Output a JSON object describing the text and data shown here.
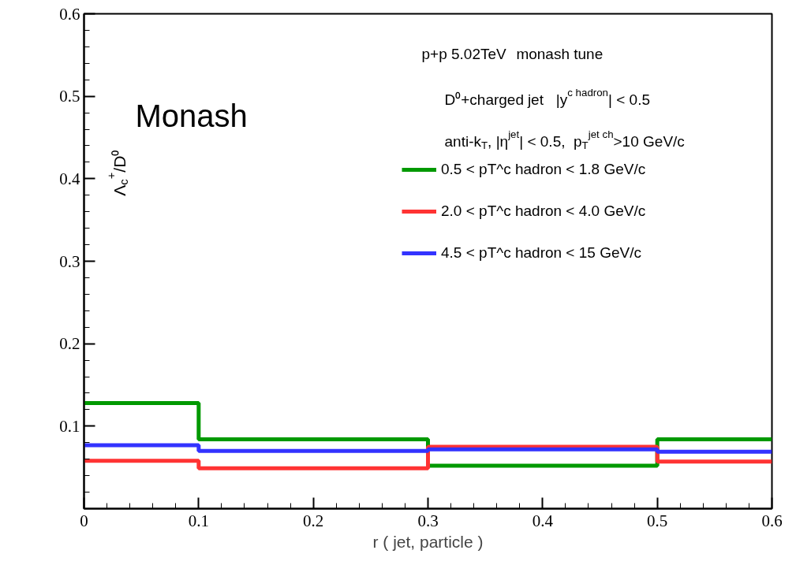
{
  "chart_data": {
    "type": "step",
    "xlabel": "r ( jet, particle )",
    "ylabel": "Λ$_{c}$$^{+}$/D⁰",
    "xlim": [
      0,
      0.6
    ],
    "ylim": [
      0,
      0.6
    ],
    "xticks": [
      0,
      0.1,
      0.2,
      0.3,
      0.4,
      0.5,
      0.6
    ],
    "yticks": [
      0.1,
      0.2,
      0.3,
      0.4,
      0.5,
      0.6
    ],
    "x": [
      0,
      0.1,
      0.3,
      0.5,
      0.6
    ],
    "legend": "top right",
    "annotations": [
      "Monash",
      "p+p 5.02TeV  monash tune",
      "D⁰+charged jet   |y$^{c hadron}$| < 0.5",
      "anti-k$_{T}$, |η$^{jet}$| < 0.5,  p$_{T}$$^{jet ch}$>10 GeV/c"
    ],
    "series": [
      {
        "name": "0.5 < pT^c hadron < 1.8 GeV/c",
        "color": "#009900",
        "values": [
          0.128,
          0.084,
          0.052,
          0.084,
          0.084
        ]
      },
      {
        "name": "2.0 < pT^c hadron < 4.0 GeV/c",
        "color": "#ff3333",
        "values": [
          0.058,
          0.049,
          0.075,
          0.057,
          0.057
        ]
      },
      {
        "name": "4.5 < pT^c hadron < 15 GeV/c",
        "color": "#3333ff",
        "values": [
          0.077,
          0.07,
          0.072,
          0.069,
          0.069
        ]
      }
    ]
  }
}
